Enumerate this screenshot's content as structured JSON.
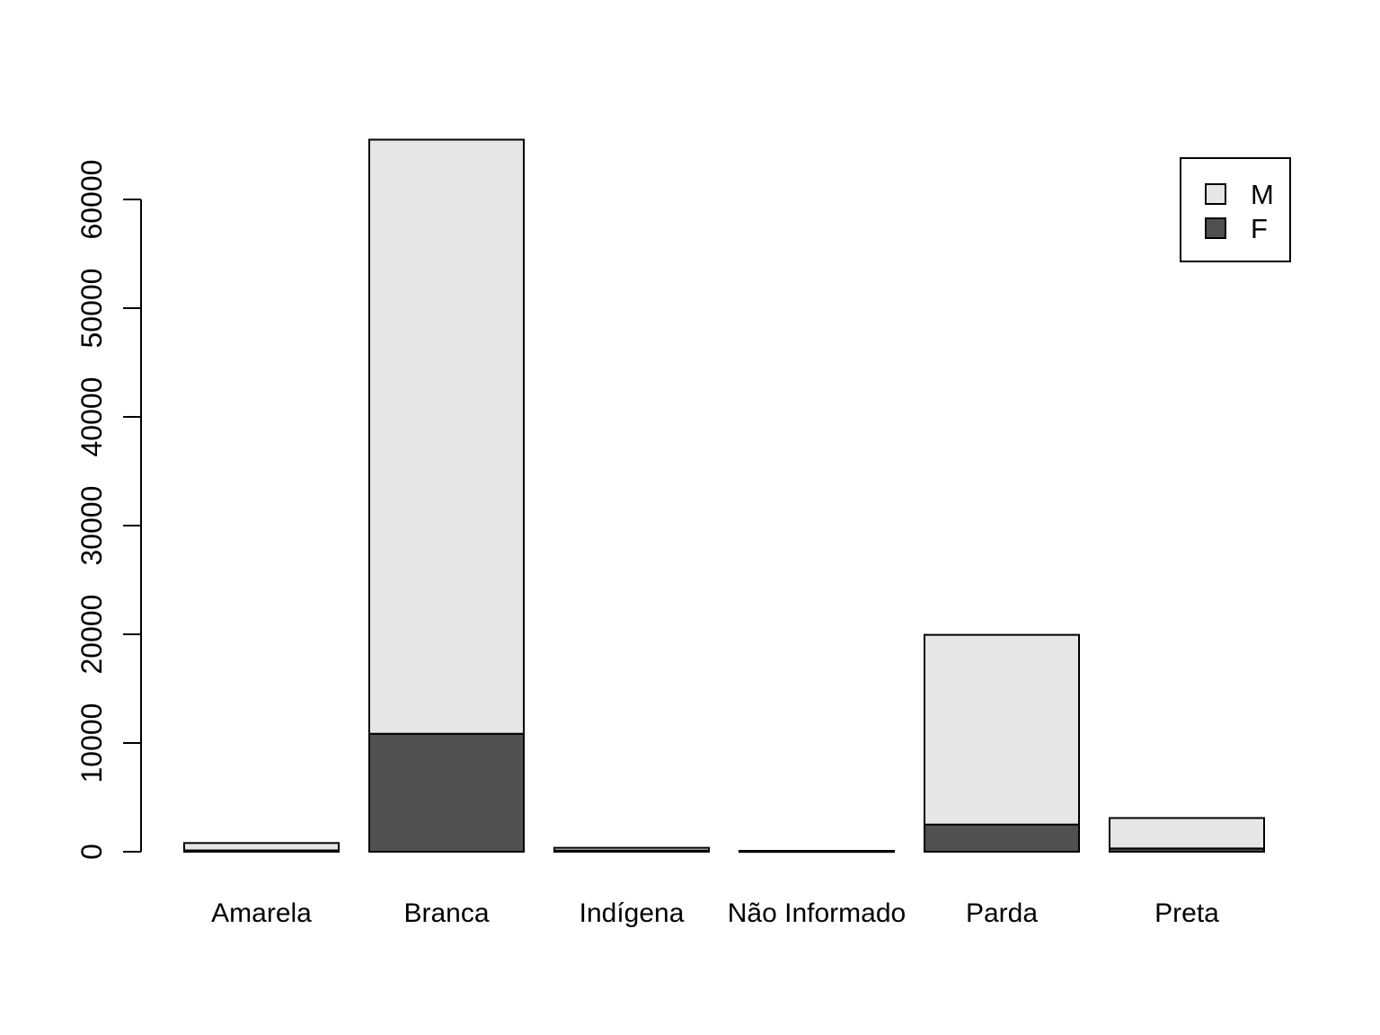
{
  "chart_data": {
    "type": "bar",
    "stacked": true,
    "title": "",
    "xlabel": "",
    "ylabel": "",
    "categories": [
      "Amarela",
      "Branca",
      "Indígena",
      "Não Informado",
      "Parda",
      "Preta"
    ],
    "series": [
      {
        "name": "F",
        "color": "#505050",
        "values": [
          120,
          10850,
          110,
          25,
          2500,
          300
        ]
      },
      {
        "name": "M",
        "color": "#e6e6e6",
        "values": [
          680,
          54650,
          250,
          55,
          17450,
          2800
        ]
      }
    ],
    "ylim": [
      0,
      65500
    ],
    "yticks": [
      0,
      10000,
      20000,
      30000,
      40000,
      50000,
      60000
    ],
    "legend": {
      "position": "top-right",
      "entries": [
        "M",
        "F"
      ]
    },
    "grid": false
  }
}
